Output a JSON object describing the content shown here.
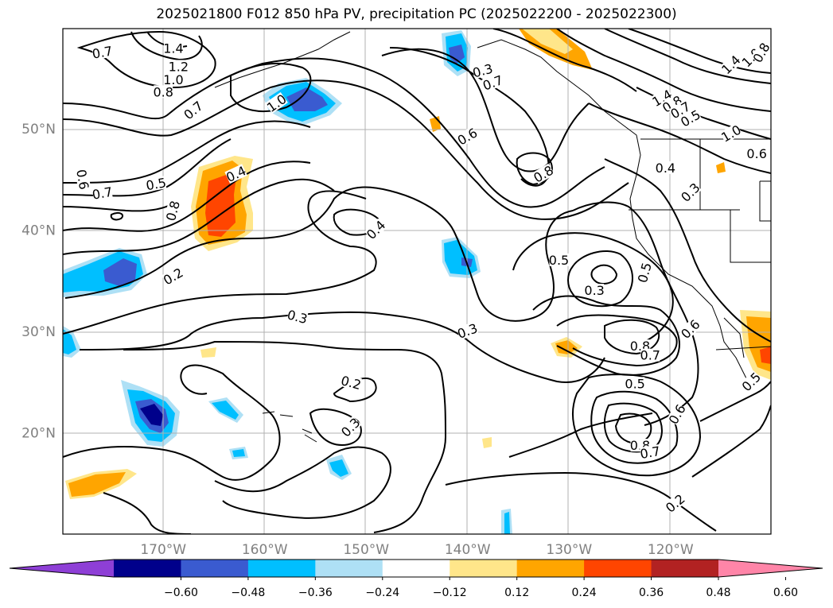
{
  "title": "2025021800 F012 850 hPa PV, precipitation PC (2025022200 - 2025022300)",
  "lon_ticks": [
    {
      "lon": -170,
      "label": "170°W"
    },
    {
      "lon": -160,
      "label": "160°W"
    },
    {
      "lon": -150,
      "label": "150°W"
    },
    {
      "lon": -140,
      "label": "140°W"
    },
    {
      "lon": -130,
      "label": "130°W"
    },
    {
      "lon": -120,
      "label": "120°W"
    }
  ],
  "lat_ticks": [
    {
      "lat": 50,
      "label": "50°N"
    },
    {
      "lat": 40,
      "label": "40°N"
    },
    {
      "lat": 30,
      "label": "30°N"
    },
    {
      "lat": 20,
      "label": "20°N"
    }
  ],
  "colorbar": {
    "colors": [
      "#8e3fd6",
      "#00008b",
      "#3a5bd0",
      "#00bfff",
      "#aee0f5",
      "#ffffff",
      "#ffe68a",
      "#ffa500",
      "#ff4500",
      "#b22222",
      "#ff85a8"
    ],
    "labels": [
      "−0.60",
      "−0.48",
      "−0.36",
      "−0.24",
      "−0.12",
      "0.12",
      "0.24",
      "0.36",
      "0.48",
      "0.60"
    ]
  },
  "contour_labels": [
    {
      "text": "0.7",
      "lon": -176.0,
      "lat": 57.5,
      "rot": -10
    },
    {
      "text": "1.4",
      "lon": -169.0,
      "lat": 57.9,
      "rot": 0
    },
    {
      "text": "1.2",
      "lon": -168.5,
      "lat": 56.1,
      "rot": 0
    },
    {
      "text": "1.0",
      "lon": -169.0,
      "lat": 54.8,
      "rot": 0
    },
    {
      "text": "0.8",
      "lon": -170.0,
      "lat": 53.6,
      "rot": 0
    },
    {
      "text": "0.7",
      "lon": -167.0,
      "lat": 51.8,
      "rot": -40
    },
    {
      "text": "1.0",
      "lon": -158.8,
      "lat": 52.5,
      "rot": -35
    },
    {
      "text": "0.4",
      "lon": -162.8,
      "lat": 45.5,
      "rot": -25
    },
    {
      "text": "0.5",
      "lon": -170.7,
      "lat": 44.5,
      "rot": -10
    },
    {
      "text": "0.6",
      "lon": -178.0,
      "lat": 45.0,
      "rot": 80
    },
    {
      "text": "0.7",
      "lon": -176.0,
      "lat": 43.6,
      "rot": -10
    },
    {
      "text": "0.8",
      "lon": -169.0,
      "lat": 41.9,
      "rot": -75
    },
    {
      "text": "0.2",
      "lon": -169.0,
      "lat": 35.4,
      "rot": -30
    },
    {
      "text": "0.3",
      "lon": -156.8,
      "lat": 31.4,
      "rot": 15
    },
    {
      "text": "0.4",
      "lon": -149.0,
      "lat": 40.0,
      "rot": -45
    },
    {
      "text": "0.2",
      "lon": -151.5,
      "lat": 24.9,
      "rot": 15
    },
    {
      "text": "0.3",
      "lon": -151.5,
      "lat": 20.5,
      "rot": -45
    },
    {
      "text": "0.3",
      "lon": -138.5,
      "lat": 55.7,
      "rot": -15
    },
    {
      "text": "0.7",
      "lon": -137.5,
      "lat": 54.5,
      "rot": -20
    },
    {
      "text": "0.6",
      "lon": -140.0,
      "lat": 49.2,
      "rot": -30
    },
    {
      "text": "0.8",
      "lon": -132.5,
      "lat": 45.5,
      "rot": -30
    },
    {
      "text": "0.3",
      "lon": -140.0,
      "lat": 30.0,
      "rot": -20
    },
    {
      "text": "0.5",
      "lon": -131.0,
      "lat": 37.0,
      "rot": 0
    },
    {
      "text": "0.3",
      "lon": -127.5,
      "lat": 34.0,
      "rot": 0
    },
    {
      "text": "0.5",
      "lon": -122.5,
      "lat": 35.8,
      "rot": -75
    },
    {
      "text": "0.6",
      "lon": -118.0,
      "lat": 30.2,
      "rot": -45
    },
    {
      "text": "0.8",
      "lon": -123.0,
      "lat": 28.5,
      "rot": 0
    },
    {
      "text": "0.7",
      "lon": -122.0,
      "lat": 27.6,
      "rot": 0
    },
    {
      "text": "0.5",
      "lon": -123.5,
      "lat": 24.8,
      "rot": 0
    },
    {
      "text": "0.6",
      "lon": -119.3,
      "lat": 21.8,
      "rot": -60
    },
    {
      "text": "0.8",
      "lon": -123.0,
      "lat": 18.7,
      "rot": 0
    },
    {
      "text": "0.7",
      "lon": -122.0,
      "lat": 18.0,
      "rot": -10
    },
    {
      "text": "0.2",
      "lon": -119.5,
      "lat": 13.0,
      "rot": -40
    },
    {
      "text": "1.4",
      "lon": -120.8,
      "lat": 53.0,
      "rot": -30
    },
    {
      "text": "0.8",
      "lon": -119.8,
      "lat": 52.4,
      "rot": -30
    },
    {
      "text": "0.7",
      "lon": -119.0,
      "lat": 51.8,
      "rot": -30
    },
    {
      "text": "0.5",
      "lon": -118.0,
      "lat": 51.0,
      "rot": -30
    },
    {
      "text": "0.4",
      "lon": -120.5,
      "lat": 46.1,
      "rot": 0
    },
    {
      "text": "0.3",
      "lon": -118.0,
      "lat": 43.7,
      "rot": -45
    },
    {
      "text": "1.0",
      "lon": -114.0,
      "lat": 49.5,
      "rot": -30
    },
    {
      "text": "0.6",
      "lon": -111.5,
      "lat": 47.5,
      "rot": 0
    },
    {
      "text": "1.4",
      "lon": -114.0,
      "lat": 56.3,
      "rot": -45
    },
    {
      "text": "1.0",
      "lon": -112.0,
      "lat": 57.0,
      "rot": -45
    },
    {
      "text": "0.8",
      "lon": -111.0,
      "lat": 57.5,
      "rot": -60
    },
    {
      "text": "0.5",
      "lon": -112.0,
      "lat": 25.0,
      "rot": -45
    }
  ]
}
